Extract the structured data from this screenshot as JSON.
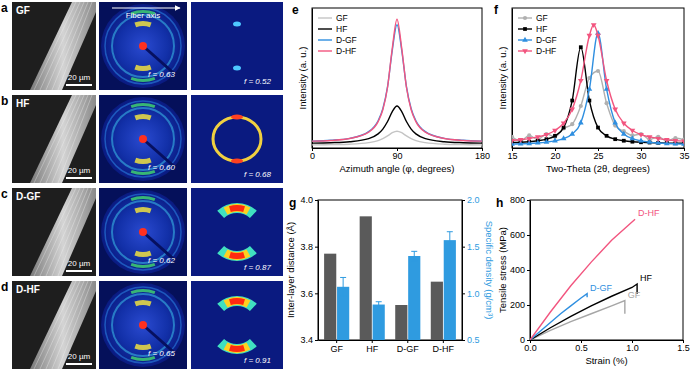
{
  "image_panels": [
    {
      "letter": "a",
      "sample": "GF",
      "scale_bar": "20 µm",
      "f_left": "f = 0.63",
      "f_right": "f = 0.52"
    },
    {
      "letter": "b",
      "sample": "HF",
      "scale_bar": "20 µm",
      "f_left": "f = 0.60",
      "f_right": "f = 0.68"
    },
    {
      "letter": "c",
      "sample": "D-GF",
      "scale_bar": "20 µm",
      "f_left": "f = 0.62",
      "f_right": "f = 0.87"
    },
    {
      "letter": "d",
      "sample": "D-HF",
      "scale_bar": "20 µm",
      "f_left": "f = 0.65",
      "f_right": "f = 0.91"
    }
  ],
  "fiber_axis": "Fiber axis",
  "chart_data": [
    {
      "type": "line",
      "title": "e",
      "xlabel": "Azimuth angle (φ, degrees)",
      "ylabel": "Intensity (a. u.)",
      "x": [
        0,
        20,
        40,
        60,
        70,
        75,
        80,
        85,
        90,
        95,
        100,
        105,
        110,
        120,
        140,
        160,
        180
      ],
      "xlim": [
        0,
        180
      ],
      "xticks": [
        0,
        90,
        180
      ],
      "ylim": [
        0,
        1
      ],
      "tick_labels": "x",
      "legend": "upper left",
      "series": [
        {
          "name": "GF",
          "color": "#c4c4c4",
          "values": [
            0.022,
            0.024,
            0.027,
            0.038,
            0.053,
            0.067,
            0.086,
            0.109,
            0.12,
            0.109,
            0.086,
            0.067,
            0.053,
            0.038,
            0.027,
            0.024,
            0.022
          ]
        },
        {
          "name": "HF",
          "color": "#000000",
          "values": [
            0.035,
            0.038,
            0.045,
            0.067,
            0.101,
            0.135,
            0.189,
            0.26,
            0.3,
            0.26,
            0.189,
            0.135,
            0.101,
            0.067,
            0.045,
            0.038,
            0.035
          ]
        },
        {
          "name": "D-GF",
          "color": "#2f8fe0",
          "values": [
            0.049,
            0.055,
            0.069,
            0.117,
            0.195,
            0.281,
            0.438,
            0.698,
            0.88,
            0.698,
            0.438,
            0.281,
            0.195,
            0.117,
            0.069,
            0.055,
            0.049
          ]
        },
        {
          "name": "D-HF",
          "color": "#f2557f",
          "values": [
            0.049,
            0.054,
            0.068,
            0.113,
            0.188,
            0.273,
            0.434,
            0.712,
            0.92,
            0.712,
            0.434,
            0.273,
            0.188,
            0.113,
            0.068,
            0.054,
            0.049
          ]
        }
      ]
    },
    {
      "type": "line",
      "title": "f",
      "xlabel": "Two-Theta (2θ, degrees)",
      "ylabel": "Intensity (a. u.)",
      "xlim": [
        15,
        35
      ],
      "xticks": [
        15,
        20,
        25,
        30,
        35
      ],
      "ylim": [
        0,
        1
      ],
      "tick_labels": "x",
      "legend": "upper left",
      "series": [
        {
          "name": "GF",
          "color": "#b0b0b0",
          "marker": "circle",
          "x": [
            15,
            16,
            17,
            18,
            19,
            20,
            21,
            22,
            23,
            24,
            25,
            26,
            27,
            28,
            29,
            30,
            31,
            32,
            33,
            34,
            35
          ],
          "values": [
            0.08,
            0.05,
            0.09,
            0.06,
            0.1,
            0.08,
            0.14,
            0.17,
            0.3,
            0.5,
            0.55,
            0.32,
            0.16,
            0.12,
            0.09,
            0.1,
            0.06,
            0.08,
            0.05,
            0.07,
            0.06
          ]
        },
        {
          "name": "HF",
          "color": "#000000",
          "marker": "square",
          "x": [
            15,
            16,
            17,
            18,
            19,
            20,
            21,
            22,
            23,
            24,
            25,
            26,
            27,
            28,
            29,
            30,
            31,
            32,
            33,
            34,
            35
          ],
          "values": [
            0.039,
            0.041,
            0.045,
            0.052,
            0.063,
            0.087,
            0.146,
            0.339,
            0.72,
            0.339,
            0.146,
            0.087,
            0.063,
            0.052,
            0.045,
            0.041,
            0.039,
            0.037,
            0.035,
            0.034,
            0.034
          ]
        },
        {
          "name": "D-GF",
          "color": "#2f8fe0",
          "marker": "triangle-up",
          "x": [
            15,
            16,
            17,
            18,
            19,
            20,
            21,
            22,
            23,
            24,
            25,
            26,
            27,
            28,
            29,
            30,
            31,
            32,
            33,
            34,
            35
          ],
          "values": [
            0.028,
            0.03,
            0.032,
            0.036,
            0.042,
            0.051,
            0.067,
            0.1,
            0.18,
            0.42,
            0.82,
            0.42,
            0.18,
            0.1,
            0.067,
            0.051,
            0.042,
            0.036,
            0.032,
            0.03,
            0.028
          ]
        },
        {
          "name": "D-HF",
          "color": "#f2557f",
          "marker": "triangle-down",
          "x": [
            15,
            16,
            17,
            18,
            19,
            20,
            21,
            22,
            23,
            24,
            24.5,
            25,
            26,
            27,
            28,
            29,
            30,
            31,
            32,
            33,
            34,
            35
          ],
          "values": [
            0.053,
            0.059,
            0.067,
            0.079,
            0.096,
            0.125,
            0.177,
            0.277,
            0.482,
            0.804,
            0.88,
            0.804,
            0.482,
            0.277,
            0.177,
            0.125,
            0.096,
            0.079,
            0.067,
            0.059,
            0.053,
            0.049
          ]
        }
      ]
    },
    {
      "type": "bar",
      "title": "g",
      "ylabel": "Inter-layer distance (Å)",
      "y2label": "Specific density (g/cm³)",
      "categories": [
        "GF",
        "HF",
        "D-GF",
        "D-HF"
      ],
      "ylim": [
        3.4,
        4.0
      ],
      "yticks": [
        3.4,
        3.6,
        3.8,
        {
          "value": 4,
          "label": "4.0"
        }
      ],
      "y2lim": [
        0.5,
        2.0
      ],
      "y2ticks": [
        0.5,
        {
          "value": 1,
          "label": "1.0"
        },
        1.5,
        {
          "value": 2,
          "label": "2.0"
        }
      ],
      "series": [
        {
          "color": "#5a5a5a",
          "values": [
            3.77,
            3.93,
            3.55,
            3.65
          ]
        },
        {
          "color": "#2f9be0",
          "axis": "y2",
          "values": [
            1.07,
            0.88,
            1.4,
            1.57
          ],
          "errors": [
            0.1,
            0.03,
            0.05,
            0.09
          ]
        }
      ]
    },
    {
      "type": "line",
      "title": "h",
      "xlabel": "Strain (%)",
      "ylabel": "Tensile stress (MPa)",
      "xlim": [
        0,
        1.5
      ],
      "xticks": [
        {
          "value": 0,
          "label": "0.0"
        },
        0.5,
        {
          "value": 1,
          "label": "1.0"
        },
        1.5
      ],
      "ylim": [
        0,
        800
      ],
      "yticks": [
        0,
        200,
        400,
        600,
        800
      ],
      "series": [
        {
          "name": "GF",
          "color": "#a6a6a6",
          "x": [
            0,
            0.2,
            0.4,
            0.6,
            0.8,
            0.93,
            0.93
          ],
          "values": [
            0,
            55,
            105,
            150,
            195,
            225,
            150
          ]
        },
        {
          "name": "HF",
          "color": "#000000",
          "x": [
            0,
            0.2,
            0.4,
            0.6,
            0.8,
            1.0,
            1.05,
            1.05
          ],
          "values": [
            0,
            70,
            135,
            195,
            250,
            300,
            320,
            265
          ]
        },
        {
          "name": "D-GF",
          "color": "#2f8fe0",
          "x": [
            0,
            0.1,
            0.2,
            0.3,
            0.4,
            0.5,
            0.56,
            0.56
          ],
          "values": [
            0,
            50,
            100,
            150,
            195,
            240,
            265,
            245
          ]
        },
        {
          "name": "D-HF",
          "color": "#f2557f",
          "x": [
            0,
            0.2,
            0.4,
            0.6,
            0.8,
            1.03
          ],
          "values": [
            0,
            160,
            310,
            445,
            570,
            690
          ]
        }
      ]
    }
  ]
}
